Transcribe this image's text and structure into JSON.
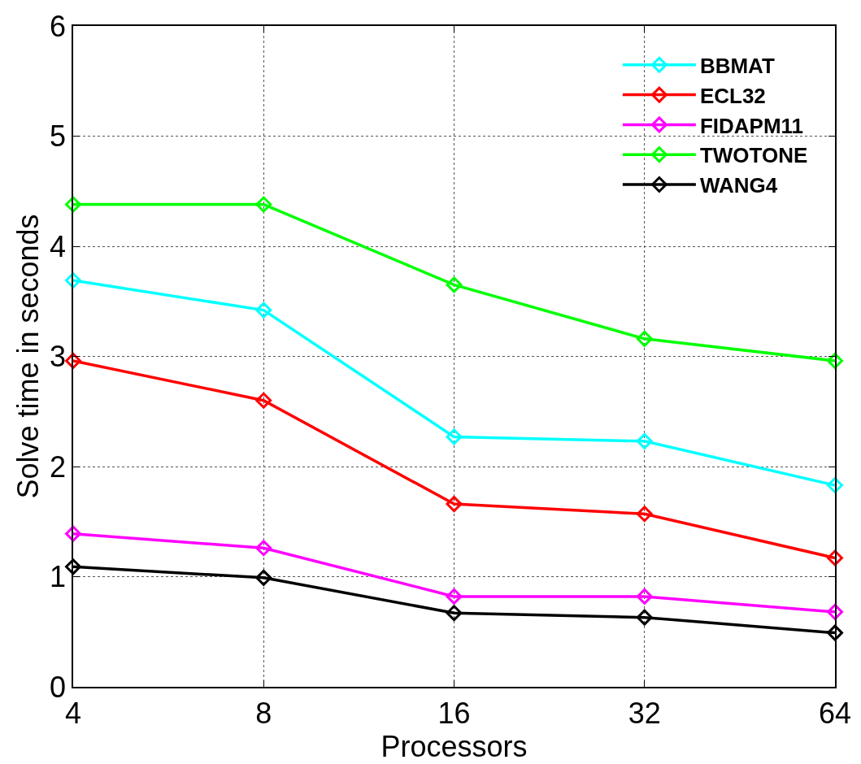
{
  "chart_data": {
    "type": "line",
    "xlabel": "Processors",
    "ylabel": "Solve time in seconds",
    "x": [
      4,
      8,
      16,
      32,
      64
    ],
    "log": "x",
    "xlim": [
      4,
      64
    ],
    "xticks": [
      4,
      8,
      16,
      32,
      64
    ],
    "ylim": [
      0,
      6
    ],
    "yticks": [
      0,
      1,
      2,
      3,
      4,
      5,
      6
    ],
    "grid": true,
    "legend": "top right",
    "marker": "diamond",
    "line_style": "solid",
    "series": [
      {
        "name": "BBMAT",
        "color": "#00ffff",
        "values": [
          3.69,
          3.42,
          2.27,
          2.23,
          1.83
        ]
      },
      {
        "name": "ECL32",
        "color": "#ff0000",
        "values": [
          2.96,
          2.6,
          1.66,
          1.57,
          1.17
        ]
      },
      {
        "name": "FIDAPM11",
        "color": "#ff00ff",
        "values": [
          1.39,
          1.26,
          0.82,
          0.82,
          0.68
        ]
      },
      {
        "name": "TWOTONE",
        "color": "#00ff00",
        "values": [
          4.38,
          4.38,
          3.65,
          3.16,
          2.96
        ]
      },
      {
        "name": "WANG4",
        "color": "#000000",
        "values": [
          1.09,
          0.99,
          0.67,
          0.63,
          0.49
        ]
      }
    ]
  }
}
